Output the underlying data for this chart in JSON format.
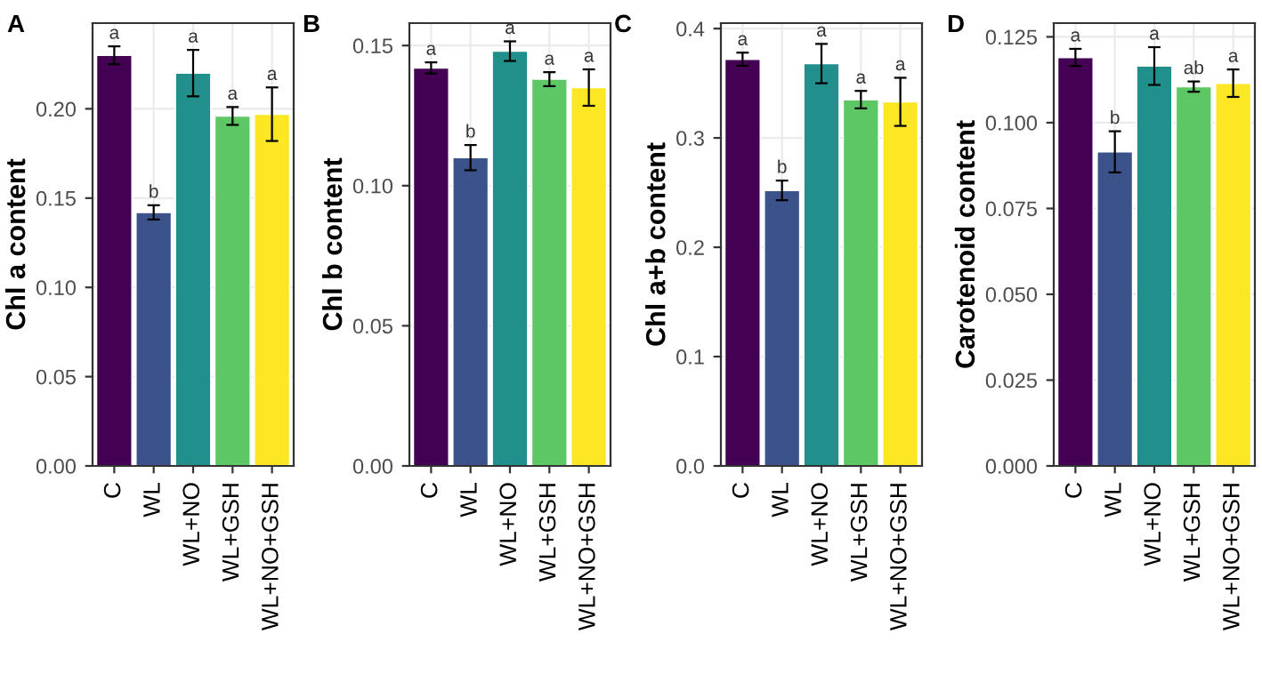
{
  "chart_data": [
    {
      "type": "bar",
      "title": "A",
      "ylabel": "Chl a content",
      "categories": [
        "C",
        "WL",
        "WL+NO",
        "WL+GSH",
        "WL+NO+GSH"
      ],
      "values": [
        0.23,
        0.142,
        0.22,
        0.196,
        0.197
      ],
      "errors": [
        0.005,
        0.004,
        0.013,
        0.005,
        0.015
      ],
      "colors": [
        "#440154",
        "#3b528b",
        "#21908c",
        "#5dc863",
        "#fde725"
      ],
      "ylim": [
        0,
        0.248
      ],
      "yticks": [
        {
          "value": 0,
          "label": "0.00"
        },
        {
          "value": 0.05,
          "label": "0.05"
        },
        {
          "value": 0.1,
          "label": "0.10"
        },
        {
          "value": 0.15,
          "label": "0.15"
        },
        {
          "value": 0.2,
          "label": "0.20"
        }
      ],
      "grid": true,
      "annotations": [
        {
          "text": "a",
          "x": "C",
          "y": 0.235
        },
        {
          "text": "b",
          "x": "WL",
          "y": 0.146
        },
        {
          "text": "a",
          "x": "WL+NO",
          "y": 0.233
        },
        {
          "text": "a",
          "x": "WL+GSH",
          "y": 0.201
        },
        {
          "text": "a",
          "x": "WL+NO+GSH",
          "y": 0.212
        }
      ]
    },
    {
      "type": "bar",
      "title": "B",
      "ylabel": "Chl b content",
      "categories": [
        "C",
        "WL",
        "WL+NO",
        "WL+GSH",
        "WL+NO+GSH"
      ],
      "values": [
        0.142,
        0.11,
        0.148,
        0.138,
        0.135
      ],
      "errors": [
        0.002,
        0.0045,
        0.0035,
        0.0025,
        0.0065
      ],
      "colors": [
        "#440154",
        "#3b528b",
        "#21908c",
        "#5dc863",
        "#fde725"
      ],
      "ylim": [
        0,
        0.158
      ],
      "yticks": [
        {
          "value": 0,
          "label": "0.00"
        },
        {
          "value": 0.05,
          "label": "0.05"
        },
        {
          "value": 0.1,
          "label": "0.10"
        },
        {
          "value": 0.15,
          "label": "0.15"
        }
      ],
      "grid": true,
      "annotations": [
        {
          "text": "a",
          "x": "C",
          "y": 0.144
        },
        {
          "text": "b",
          "x": "WL",
          "y": 0.1145
        },
        {
          "text": "a",
          "x": "WL+NO",
          "y": 0.1515
        },
        {
          "text": "a",
          "x": "WL+GSH",
          "y": 0.1405
        },
        {
          "text": "a",
          "x": "WL+NO+GSH",
          "y": 0.1415
        }
      ]
    },
    {
      "type": "bar",
      "title": "C",
      "ylabel": "Chl a+b content",
      "categories": [
        "C",
        "WL",
        "WL+NO",
        "WL+GSH",
        "WL+NO+GSH"
      ],
      "values": [
        0.372,
        0.252,
        0.368,
        0.335,
        0.333
      ],
      "errors": [
        0.006,
        0.009,
        0.018,
        0.008,
        0.022
      ],
      "colors": [
        "#440154",
        "#3b528b",
        "#21908c",
        "#5dc863",
        "#fde725"
      ],
      "ylim": [
        0,
        0.405
      ],
      "yticks": [
        {
          "value": 0,
          "label": "0.0"
        },
        0.1,
        0.2,
        0.3,
        0.4
      ],
      "grid": true,
      "annotations": [
        {
          "text": "a",
          "x": "C",
          "y": 0.378
        },
        {
          "text": "b",
          "x": "WL",
          "y": 0.261
        },
        {
          "text": "a",
          "x": "WL+NO",
          "y": 0.386
        },
        {
          "text": "a",
          "x": "WL+GSH",
          "y": 0.343
        },
        {
          "text": "a",
          "x": "WL+NO+GSH",
          "y": 0.355
        }
      ]
    },
    {
      "type": "bar",
      "title": "D",
      "ylabel": "Carotenoid content",
      "categories": [
        "C",
        "WL",
        "WL+NO",
        "WL+GSH",
        "WL+NO+GSH"
      ],
      "values": [
        0.119,
        0.0915,
        0.1165,
        0.1105,
        0.1115
      ],
      "errors": [
        0.0025,
        0.006,
        0.0055,
        0.0015,
        0.004
      ],
      "colors": [
        "#440154",
        "#3b528b",
        "#21908c",
        "#5dc863",
        "#fde725"
      ],
      "ylim": [
        0,
        0.129
      ],
      "yticks": [
        {
          "value": 0,
          "label": "0.000"
        },
        {
          "value": 0.025,
          "label": "0.025"
        },
        {
          "value": 0.05,
          "label": "0.050"
        },
        {
          "value": 0.075,
          "label": "0.075"
        },
        {
          "value": 0.1,
          "label": "0.100"
        },
        0.125
      ],
      "grid": true,
      "annotations": [
        {
          "text": "a",
          "x": "C",
          "y": 0.1215
        },
        {
          "text": "b",
          "x": "WL",
          "y": 0.0975
        },
        {
          "text": "a",
          "x": "WL+NO",
          "y": 0.122
        },
        {
          "text": "ab",
          "x": "WL+GSH",
          "y": 0.112
        },
        {
          "text": "a",
          "x": "WL+NO+GSH",
          "y": 0.1155
        }
      ]
    }
  ]
}
